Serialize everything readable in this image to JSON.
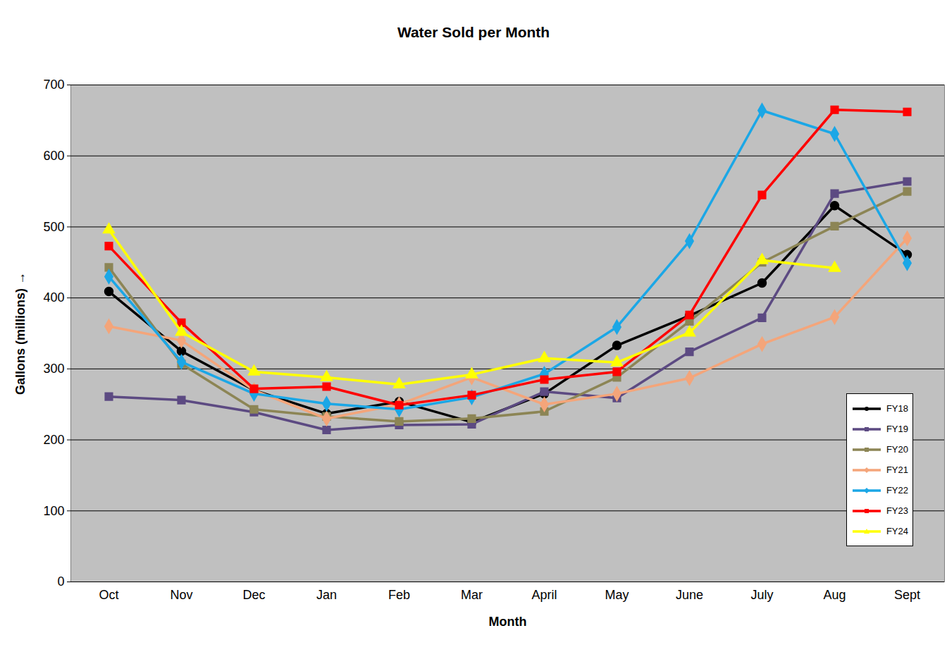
{
  "chart_data": {
    "type": "line",
    "title": "Water Sold per Month",
    "x_label": "Month",
    "y_label": "Gallons (millions)",
    "categories": [
      "Oct",
      "Nov",
      "Dec",
      "Jan",
      "Feb",
      "Mar",
      "April",
      "May",
      "June",
      "July",
      "Aug",
      "Sept"
    ],
    "series": [
      {
        "name": "FY18",
        "color": "#000000",
        "marker": "circle",
        "values": [
          409,
          325,
          270,
          237,
          254,
          225,
          265,
          333,
          375,
          421,
          530,
          461
        ]
      },
      {
        "name": "FY19",
        "color": "#5c4a82",
        "marker": "square",
        "values": [
          261,
          256,
          239,
          214,
          221,
          222,
          268,
          259,
          324,
          372,
          547,
          564
        ]
      },
      {
        "name": "FY20",
        "color": "#8c8555",
        "marker": "square",
        "values": [
          443,
          307,
          243,
          233,
          226,
          230,
          240,
          288,
          367,
          450,
          501,
          550
        ]
      },
      {
        "name": "FY21",
        "color": "#f4a57a",
        "marker": "diamond",
        "values": [
          360,
          340,
          270,
          230,
          250,
          288,
          250,
          265,
          287,
          335,
          373,
          484
        ]
      },
      {
        "name": "FY22",
        "color": "#1ba7e6",
        "marker": "diamond",
        "values": [
          430,
          310,
          265,
          251,
          243,
          260,
          293,
          359,
          480,
          664,
          631,
          449
        ]
      },
      {
        "name": "FY23",
        "color": "#ff0000",
        "marker": "square",
        "values": [
          473,
          365,
          272,
          275,
          249,
          263,
          285,
          296,
          376,
          545,
          665,
          662
        ]
      },
      {
        "name": "FY24",
        "color": "#ffff00",
        "marker": "triangle",
        "values": [
          496,
          352,
          296,
          288,
          278,
          292,
          315,
          309,
          351,
          453,
          442,
          null
        ]
      }
    ],
    "ylim": [
      0,
      700
    ],
    "yticks": [
      0,
      100,
      200,
      300,
      400,
      500,
      600,
      700
    ],
    "grid": true,
    "legend": "bottom-right"
  }
}
